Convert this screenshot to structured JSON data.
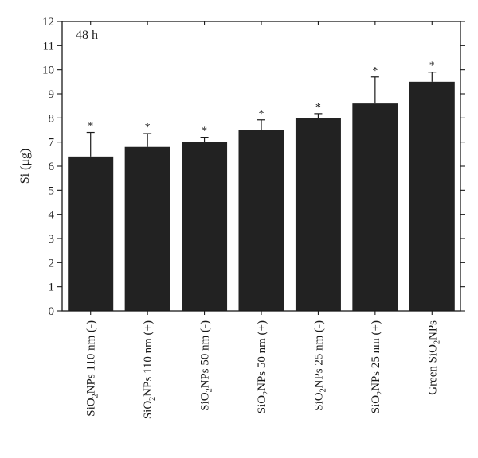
{
  "chart_data": {
    "type": "bar",
    "panel_label": "48 h",
    "ylabel": "Si (μg)",
    "xlabel": "",
    "ylim": [
      0,
      12
    ],
    "yticks": [
      0,
      1,
      2,
      3,
      4,
      5,
      6,
      7,
      8,
      9,
      10,
      11,
      12
    ],
    "grid": false,
    "bar_color": "#222222",
    "categories": [
      {
        "pre": "SiO",
        "sub": "2",
        "post": "NPs 110 nm (-)"
      },
      {
        "pre": "SiO",
        "sub": "2",
        "post": "NPs 110 nm (+)"
      },
      {
        "pre": "SiO",
        "sub": "2",
        "post": "NPs 50 nm (-)"
      },
      {
        "pre": "SiO",
        "sub": "2",
        "post": "NPs 50 nm (+)"
      },
      {
        "pre": "SiO",
        "sub": "2",
        "post": "NPs 25 nm (-)"
      },
      {
        "pre": "SiO",
        "sub": "2",
        "post": "NPs 25 nm (+)"
      },
      {
        "pre": "Green SiO",
        "sub": "2",
        "post": "NPs"
      }
    ],
    "values": [
      6.4,
      6.8,
      7.0,
      7.5,
      8.0,
      8.6,
      9.5
    ],
    "errors": [
      1.0,
      0.55,
      0.2,
      0.42,
      0.18,
      1.1,
      0.4
    ],
    "annotations": [
      "*",
      "*",
      "*",
      "*",
      "*",
      "*",
      "*"
    ]
  }
}
